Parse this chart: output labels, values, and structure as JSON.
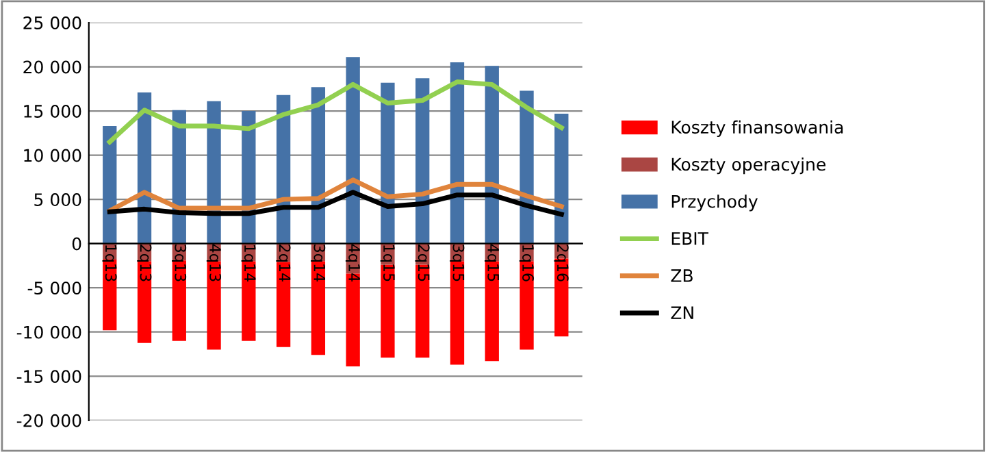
{
  "chart_data": {
    "type": "bar",
    "stacked": true,
    "categories": [
      "1q13",
      "2q13",
      "3q13",
      "4q13",
      "1q14",
      "2q14",
      "3q14",
      "4q14",
      "1q15",
      "2q15",
      "3q15",
      "4q15",
      "1q16",
      "2q16"
    ],
    "series": [
      {
        "name": "Przychody",
        "color": "#4572a7",
        "values": [
          13300,
          17100,
          15100,
          16100,
          15000,
          16800,
          17700,
          21100,
          18200,
          18700,
          20500,
          20100,
          17300,
          14700
        ]
      },
      {
        "name": "Koszty operacyjne",
        "color": "#aa4643",
        "values": [
          -1800,
          -2000,
          -1900,
          -2000,
          -2000,
          -2100,
          -2000,
          -3400,
          -2400,
          -2400,
          -2000,
          -2000,
          -2000,
          -1700
        ]
      },
      {
        "name": "Koszty finansowania",
        "color": "#ff0000",
        "values": [
          -8000,
          -9250,
          -9100,
          -10000,
          -9000,
          -9600,
          -10600,
          -10500,
          -10500,
          -10500,
          -11700,
          -11300,
          -10000,
          -8800
        ]
      },
      {
        "name": "EBIT",
        "type": "line",
        "color": "#92d050",
        "values": [
          11500,
          15100,
          13300,
          13300,
          13000,
          14600,
          15700,
          18000,
          15900,
          16200,
          18300,
          18000,
          15400,
          13100
        ]
      },
      {
        "name": "ZB",
        "type": "line",
        "color": "#e0843c",
        "values": [
          3700,
          5800,
          4000,
          4000,
          4000,
          5000,
          5100,
          7200,
          5300,
          5600,
          6700,
          6700,
          5400,
          4200
        ]
      },
      {
        "name": "ZN",
        "type": "line",
        "color": "#000000",
        "values": [
          3600,
          3900,
          3500,
          3400,
          3400,
          4100,
          4100,
          5800,
          4200,
          4500,
          5500,
          5500,
          4300,
          3300
        ]
      }
    ],
    "ylim": [
      -20000,
      25000
    ],
    "yticks": [
      {
        "value": -20000,
        "label": "-20 000"
      },
      {
        "value": -15000,
        "label": "-15 000"
      },
      {
        "value": -10000,
        "label": "-10 000"
      },
      {
        "value": -5000,
        "label": "-5 000"
      },
      0,
      {
        "value": 5000,
        "label": "5 000"
      },
      {
        "value": 10000,
        "label": "10 000"
      },
      {
        "value": 15000,
        "label": "15 000"
      },
      {
        "value": 20000,
        "label": "20 000"
      },
      {
        "value": 25000,
        "label": "25 000"
      }
    ],
    "grid": "y",
    "legend": "right",
    "line_style": "solid",
    "marker": "none"
  }
}
